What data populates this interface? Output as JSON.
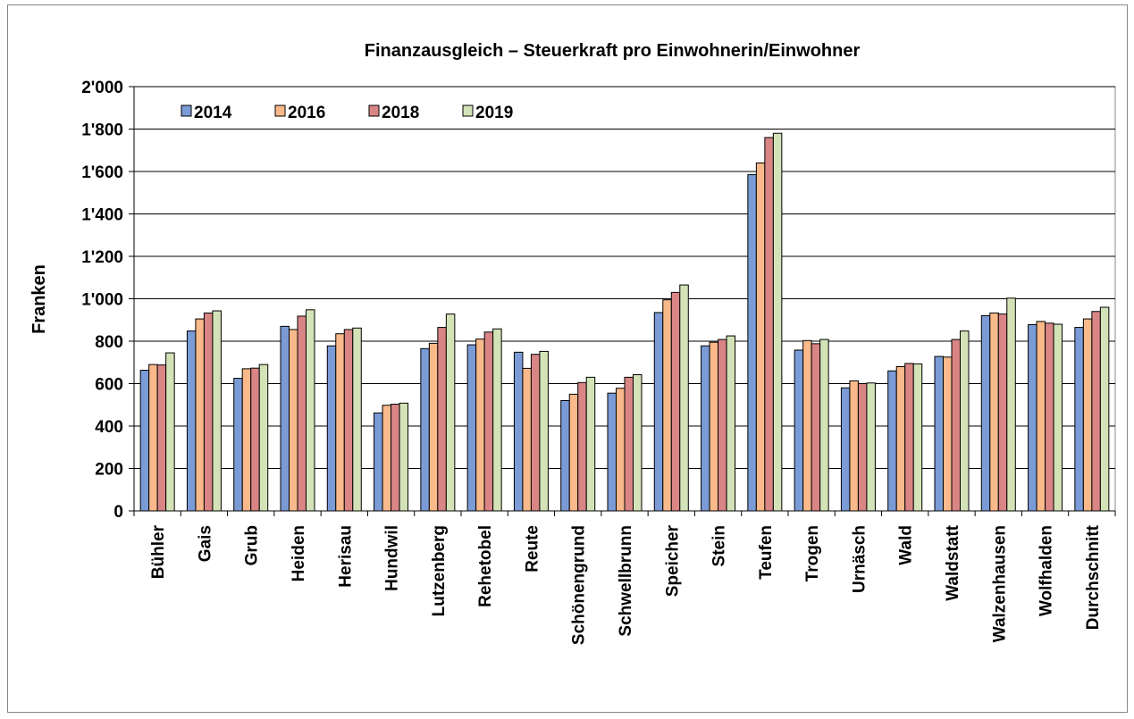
{
  "chart_data": {
    "type": "bar",
    "title": "Finanzausgleich – Steuerkraft pro Einwohnerin/Einwohner",
    "y_label": "Franken",
    "categories": [
      "Bühler",
      "Gais",
      "Grub",
      "Heiden",
      "Herisau",
      "Hundwil",
      "Lutzenberg",
      "Rehetobel",
      "Reute",
      "Schönengrund",
      "Schwellbrunn",
      "Speicher",
      "Stein",
      "Teufen",
      "Trogen",
      "Urnäsch",
      "Wald",
      "Waldstatt",
      "Walzenhausen",
      "Wolfhalden",
      "Durchschnitt"
    ],
    "series": [
      {
        "name": "2014",
        "color": "#7b9bd6",
        "values": [
          663,
          848,
          625,
          870,
          778,
          462,
          765,
          783,
          748,
          520,
          555,
          935,
          778,
          1585,
          758,
          580,
          660,
          728,
          920,
          878,
          865
        ]
      },
      {
        "name": "2016",
        "color": "#f9b98a",
        "values": [
          690,
          905,
          670,
          855,
          835,
          498,
          790,
          810,
          672,
          550,
          578,
          995,
          795,
          1640,
          803,
          613,
          680,
          725,
          933,
          893,
          905
        ]
      },
      {
        "name": "2018",
        "color": "#d98585",
        "values": [
          688,
          933,
          673,
          918,
          855,
          503,
          865,
          843,
          738,
          605,
          630,
          1030,
          808,
          1760,
          788,
          600,
          695,
          808,
          928,
          885,
          940
        ]
      },
      {
        "name": "2019",
        "color": "#d3e3b7",
        "values": [
          745,
          943,
          690,
          948,
          862,
          508,
          928,
          858,
          752,
          630,
          642,
          1065,
          825,
          1780,
          808,
          603,
          693,
          848,
          1003,
          880,
          960
        ]
      }
    ],
    "ylim": [
      0,
      2000
    ],
    "yticks": [
      0,
      200,
      400,
      600,
      800,
      {
        "value": 1000,
        "label": "1'000"
      },
      {
        "value": 1200,
        "label": "1'200"
      },
      {
        "value": 1400,
        "label": "1'400"
      },
      {
        "value": 1600,
        "label": "1'600"
      },
      {
        "value": 1800,
        "label": "1'800"
      },
      {
        "value": 2000,
        "label": "2'000"
      }
    ],
    "grid": true,
    "legend": "top-left"
  }
}
